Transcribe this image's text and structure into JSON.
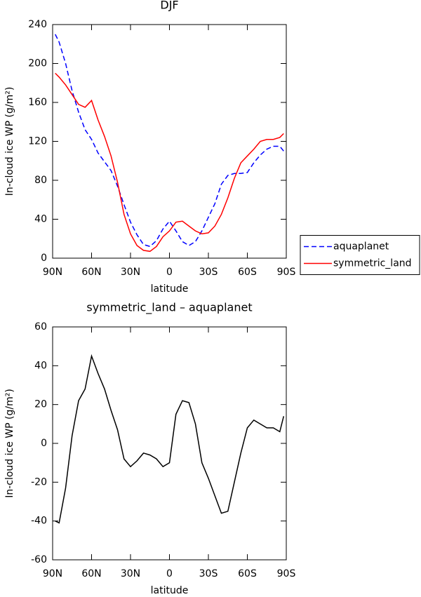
{
  "chart_data": [
    {
      "type": "line",
      "title": "DJF",
      "xlabel": "latitude",
      "ylabel": "In-cloud ice WP (g/m²)",
      "x": [
        88,
        85,
        80,
        75,
        70,
        65,
        60,
        55,
        50,
        45,
        40,
        35,
        30,
        25,
        20,
        15,
        10,
        5,
        0,
        -5,
        -10,
        -15,
        -20,
        -25,
        -30,
        -35,
        -40,
        -45,
        -50,
        -55,
        -60,
        -65,
        -70,
        -75,
        -80,
        -85,
        -88
      ],
      "xlim": [
        90,
        -90
      ],
      "xticks": [
        {
          "value": 90,
          "label": "90N"
        },
        {
          "value": 60,
          "label": "60N"
        },
        {
          "value": 30,
          "label": "30N"
        },
        0,
        {
          "value": -30,
          "label": "30S"
        },
        {
          "value": -60,
          "label": "60S"
        },
        {
          "value": -90,
          "label": "90S"
        }
      ],
      "ylim": [
        0,
        240
      ],
      "yticks": [
        0,
        40,
        80,
        120,
        160,
        200,
        240
      ],
      "legend": "right",
      "series": [
        {
          "name": "aquaplanet",
          "color": "#0000ff",
          "linestyle": "dashed",
          "values": [
            230,
            222,
            200,
            172,
            150,
            132,
            122,
            108,
            99,
            90,
            74,
            55,
            37,
            24,
            14,
            12,
            18,
            30,
            38,
            28,
            17,
            13,
            17,
            28,
            42,
            56,
            76,
            85,
            87,
            87,
            88,
            98,
            106,
            112,
            115,
            115,
            110
          ]
        },
        {
          "name": "symmetric_land",
          "color": "#ff0000",
          "linestyle": "solid",
          "values": [
            190,
            186,
            178,
            168,
            158,
            155,
            162,
            142,
            125,
            105,
            78,
            45,
            25,
            13,
            8,
            7,
            12,
            22,
            28,
            37,
            38,
            33,
            28,
            25,
            26,
            33,
            45,
            62,
            82,
            98,
            105,
            112,
            120,
            122,
            122,
            124,
            128
          ]
        }
      ]
    },
    {
      "type": "line",
      "title": "symmetric_land – aquaplanet",
      "xlabel": "latitude",
      "ylabel": "In-cloud ice WP (g/m²)",
      "x": [
        88,
        85,
        80,
        75,
        70,
        65,
        60,
        55,
        50,
        45,
        40,
        35,
        30,
        25,
        20,
        15,
        10,
        5,
        0,
        -5,
        -10,
        -15,
        -20,
        -25,
        -30,
        -35,
        -40,
        -45,
        -50,
        -55,
        -60,
        -65,
        -70,
        -75,
        -80,
        -85,
        -88
      ],
      "xlim": [
        90,
        -90
      ],
      "xticks": [
        {
          "value": 90,
          "label": "90N"
        },
        {
          "value": 60,
          "label": "60N"
        },
        {
          "value": 30,
          "label": "30N"
        },
        0,
        {
          "value": -30,
          "label": "30S"
        },
        {
          "value": -60,
          "label": "60S"
        },
        {
          "value": -90,
          "label": "90S"
        }
      ],
      "ylim": [
        -60,
        60
      ],
      "yticks": [
        -60,
        -40,
        -20,
        0,
        20,
        40,
        60
      ],
      "series": [
        {
          "color": "#000000",
          "linestyle": "solid",
          "values": [
            -40,
            -41,
            -23,
            4,
            22,
            28,
            45,
            36,
            28,
            17,
            7,
            -8,
            -12,
            -9,
            -5,
            -6,
            -8,
            -12,
            -10,
            15,
            22,
            21,
            10,
            -10,
            -18,
            -27,
            -36,
            -35,
            -20,
            -5,
            8,
            12,
            10,
            8,
            8,
            6,
            14
          ]
        }
      ]
    }
  ]
}
